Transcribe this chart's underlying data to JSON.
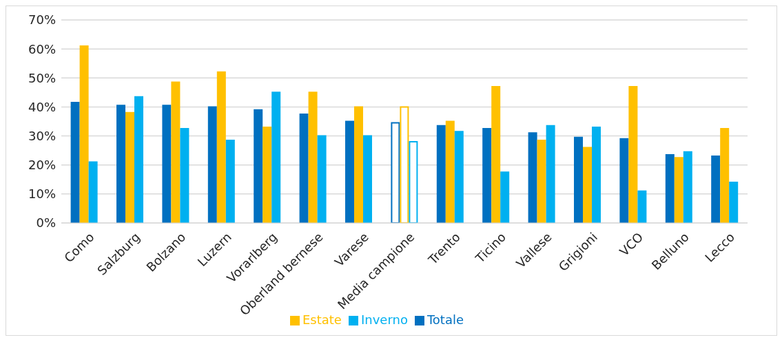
{
  "chart_data": {
    "type": "bar",
    "categories": [
      "Como",
      "Salzburg",
      "Bolzano",
      "Luzern",
      "Vorarlberg",
      "Oberland bernese",
      "Varese",
      "Media campione",
      "Trento",
      "Ticino",
      "Vallese",
      "Grigioni",
      "VCO",
      "Belluno",
      "Lecco"
    ],
    "series": [
      {
        "name": "Totale",
        "color": "#0070c0",
        "values": [
          41.5,
          40.5,
          40.5,
          40,
          39,
          37.5,
          35,
          34.5,
          33.5,
          32.5,
          31,
          29.5,
          29,
          23.5,
          23
        ],
        "colors": [
          "#0070c0",
          "#0070c0",
          "#0070c0",
          "#0070c0",
          "#0070c0",
          "#0070c0",
          "#0070c0",
          "#ffffff",
          "#0070c0",
          "#0070c0",
          "#0070c0",
          "#0070c0",
          "#0070c0",
          "#0070c0",
          "#0070c0"
        ]
      },
      {
        "name": "Estate",
        "color": "#ffc000",
        "values": [
          61,
          38,
          48.5,
          52,
          33,
          45,
          40,
          40,
          35,
          47,
          28.5,
          26,
          47,
          22.5,
          32.5
        ],
        "colors": [
          "#ffc000",
          "#ffc000",
          "#ffc000",
          "#ffc000",
          "#ffc000",
          "#ffc000",
          "#ffc000",
          "#ffffff",
          "#ffc000",
          "#ffc000",
          "#ffc000",
          "#ffc000",
          "#ffc000",
          "#ffc000",
          "#ffc000"
        ]
      },
      {
        "name": "Inverno",
        "color": "#00b0f0",
        "values": [
          21,
          43.5,
          32.5,
          28.5,
          45,
          30,
          30,
          28,
          31.5,
          17.5,
          33.5,
          33,
          11,
          24.5,
          14
        ],
        "colors": [
          "#00b0f0",
          "#00b0f0",
          "#00b0f0",
          "#00b0f0",
          "#00b0f0",
          "#00b0f0",
          "#00b0f0",
          "#ffffff",
          "#00b0f0",
          "#00b0f0",
          "#00b0f0",
          "#00b0f0",
          "#00b0f0",
          "#00b0f0",
          "#00b0f0"
        ]
      }
    ],
    "ylim": [
      0,
      70
    ],
    "yticks": [
      {
        "value": 0,
        "label": "0%"
      },
      {
        "value": 10,
        "label": "10%"
      },
      {
        "value": 20,
        "label": "20%"
      },
      {
        "value": 30,
        "label": "30%"
      },
      {
        "value": 40,
        "label": "40%"
      },
      {
        "value": 50,
        "label": "50%"
      },
      {
        "value": 60,
        "label": "60%"
      },
      {
        "value": 70,
        "label": "70%"
      }
    ],
    "grid": "y",
    "legend": "bottom"
  }
}
